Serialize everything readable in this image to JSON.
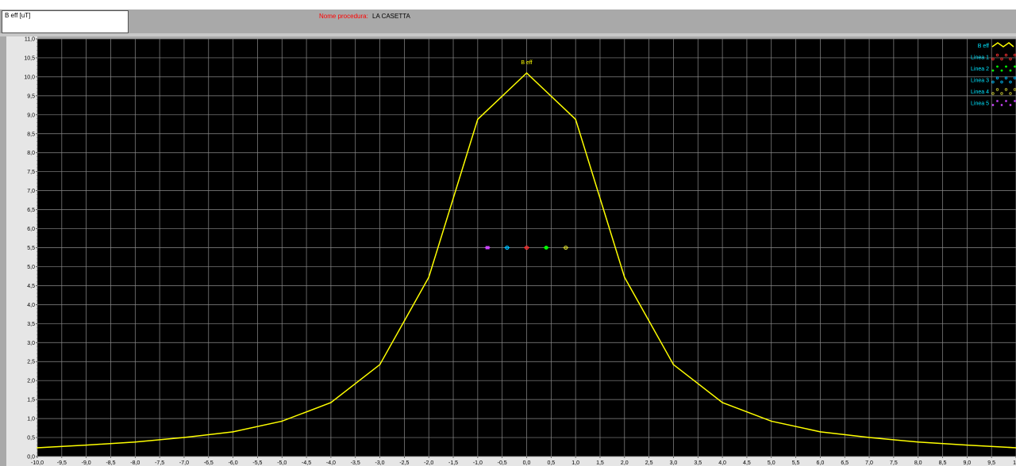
{
  "header": {
    "measure_label": "B eff [uT]",
    "procedure_label": "Nome procedura:",
    "procedure_name": "LA CASETTA"
  },
  "colors": {
    "background": "#000000",
    "grid": "#8c8c8c",
    "beff": "#ffff00",
    "legend_text": "#00e5ff",
    "linea1": "#ff3333",
    "linea2": "#00ff00",
    "linea3": "#00bfff",
    "linea4": "#c8c832",
    "linea5": "#cc44ff"
  },
  "chart_data": {
    "type": "line",
    "title": "",
    "xlabel": "",
    "ylabel": "B eff [uT]",
    "xlim": [
      -10,
      10
    ],
    "ylim": [
      0,
      11
    ],
    "x_ticks": [
      "-10,0",
      "-9,5",
      "-9,0",
      "-8,5",
      "-8,0",
      "-7,5",
      "-7,0",
      "-6,5",
      "-6,0",
      "-5,5",
      "-5,0",
      "-4,5",
      "-4,0",
      "-3,5",
      "-3,0",
      "-2,5",
      "-2,0",
      "-1,5",
      "-1,0",
      "-0,5",
      "0,0",
      "0,5",
      "1,0",
      "1,5",
      "2,0",
      "2,5",
      "3,0",
      "3,5",
      "4,0",
      "4,5",
      "5,0",
      "5,5",
      "6,0",
      "6,5",
      "7,0",
      "7,5",
      "8,0",
      "8,5",
      "9,0",
      "9,5",
      "10"
    ],
    "y_ticks": [
      "0,0",
      "0,5",
      "1,0",
      "1,5",
      "2,0",
      "2,5",
      "3,0",
      "3,5",
      "4,0",
      "4,5",
      "5,0",
      "5,5",
      "6,0",
      "6,5",
      "7,0",
      "7,5",
      "8,0",
      "8,5",
      "9,0",
      "9,5",
      "10,0",
      "10,5",
      "11,0"
    ],
    "grid": true,
    "legend_position": "top-right",
    "series": [
      {
        "name": "B eff",
        "color": "#ffff00",
        "x": [
          -10,
          -9,
          -8,
          -7,
          -6,
          -5,
          -4,
          -3,
          -2,
          -1,
          0,
          1,
          2,
          3,
          4,
          5,
          6,
          7,
          8,
          9,
          10
        ],
        "y": [
          0.23,
          0.3,
          0.38,
          0.5,
          0.65,
          0.93,
          1.42,
          2.42,
          4.72,
          8.88,
          10.1,
          8.88,
          4.72,
          2.42,
          1.42,
          0.93,
          0.65,
          0.5,
          0.38,
          0.3,
          0.23
        ]
      },
      {
        "name": "Linea 1",
        "color": "#ff3333",
        "marker": "circle",
        "x": [
          0.0
        ],
        "y": [
          5.5
        ]
      },
      {
        "name": "Linea 2",
        "color": "#00ff00",
        "marker": "dot",
        "x": [
          0.4
        ],
        "y": [
          5.5
        ]
      },
      {
        "name": "Linea 3",
        "color": "#00bfff",
        "marker": "circle",
        "x": [
          -0.4
        ],
        "y": [
          5.5
        ]
      },
      {
        "name": "Linea 4",
        "color": "#c8c832",
        "marker": "circle",
        "x": [
          0.8
        ],
        "y": [
          5.5
        ]
      },
      {
        "name": "Linea 5",
        "color": "#cc44ff",
        "marker": "square",
        "x": [
          -0.8
        ],
        "y": [
          5.5
        ]
      }
    ],
    "annotations": [
      {
        "text": "B eff",
        "x": 0.0,
        "y": 10.1
      }
    ]
  }
}
